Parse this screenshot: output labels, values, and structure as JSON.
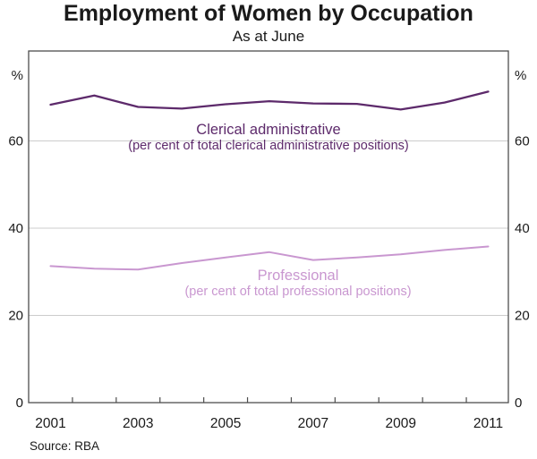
{
  "title": "Employment of Women by Occupation",
  "subtitle": "As at June",
  "source": "Source: RBA",
  "colors": {
    "clerical_line": "#5d2a6b",
    "professional_line": "#c997d0",
    "grid": "#cccccc",
    "frame": "#4d4d4d",
    "text": "#1a1a1a"
  },
  "chart_data": {
    "type": "line",
    "title": "Employment of Women by Occupation",
    "subtitle": "As at June",
    "x": [
      2001,
      2002,
      2003,
      2004,
      2005,
      2006,
      2007,
      2008,
      2009,
      2010,
      2011
    ],
    "series": [
      {
        "name": "Clerical administrative",
        "label_line1": "Clerical administrative",
        "label_line2": "(per cent of total clerical administrative positions)",
        "color": "#5d2a6b",
        "stroke_width": 2.3,
        "values": [
          68.3,
          70.4,
          67.8,
          67.4,
          68.4,
          69.1,
          68.6,
          68.5,
          67.2,
          68.8,
          71.3
        ]
      },
      {
        "name": "Professional",
        "label_line1": "Professional",
        "label_line2": "(per cent of total professional positions)",
        "color": "#c997d0",
        "stroke_width": 2.0,
        "values": [
          31.3,
          30.7,
          30.5,
          32.0,
          33.3,
          34.5,
          32.7,
          33.3,
          34.0,
          35.0,
          35.8
        ]
      }
    ],
    "ylim": [
      0,
      80
    ],
    "yticks": [
      0,
      20,
      40,
      60
    ],
    "y_unit": "%",
    "xtick_labels": [
      "2001",
      "2003",
      "2005",
      "2007",
      "2009",
      "2011"
    ],
    "grid": "horizontal",
    "legend_position": "labels-on-chart",
    "source": "Source: RBA"
  }
}
